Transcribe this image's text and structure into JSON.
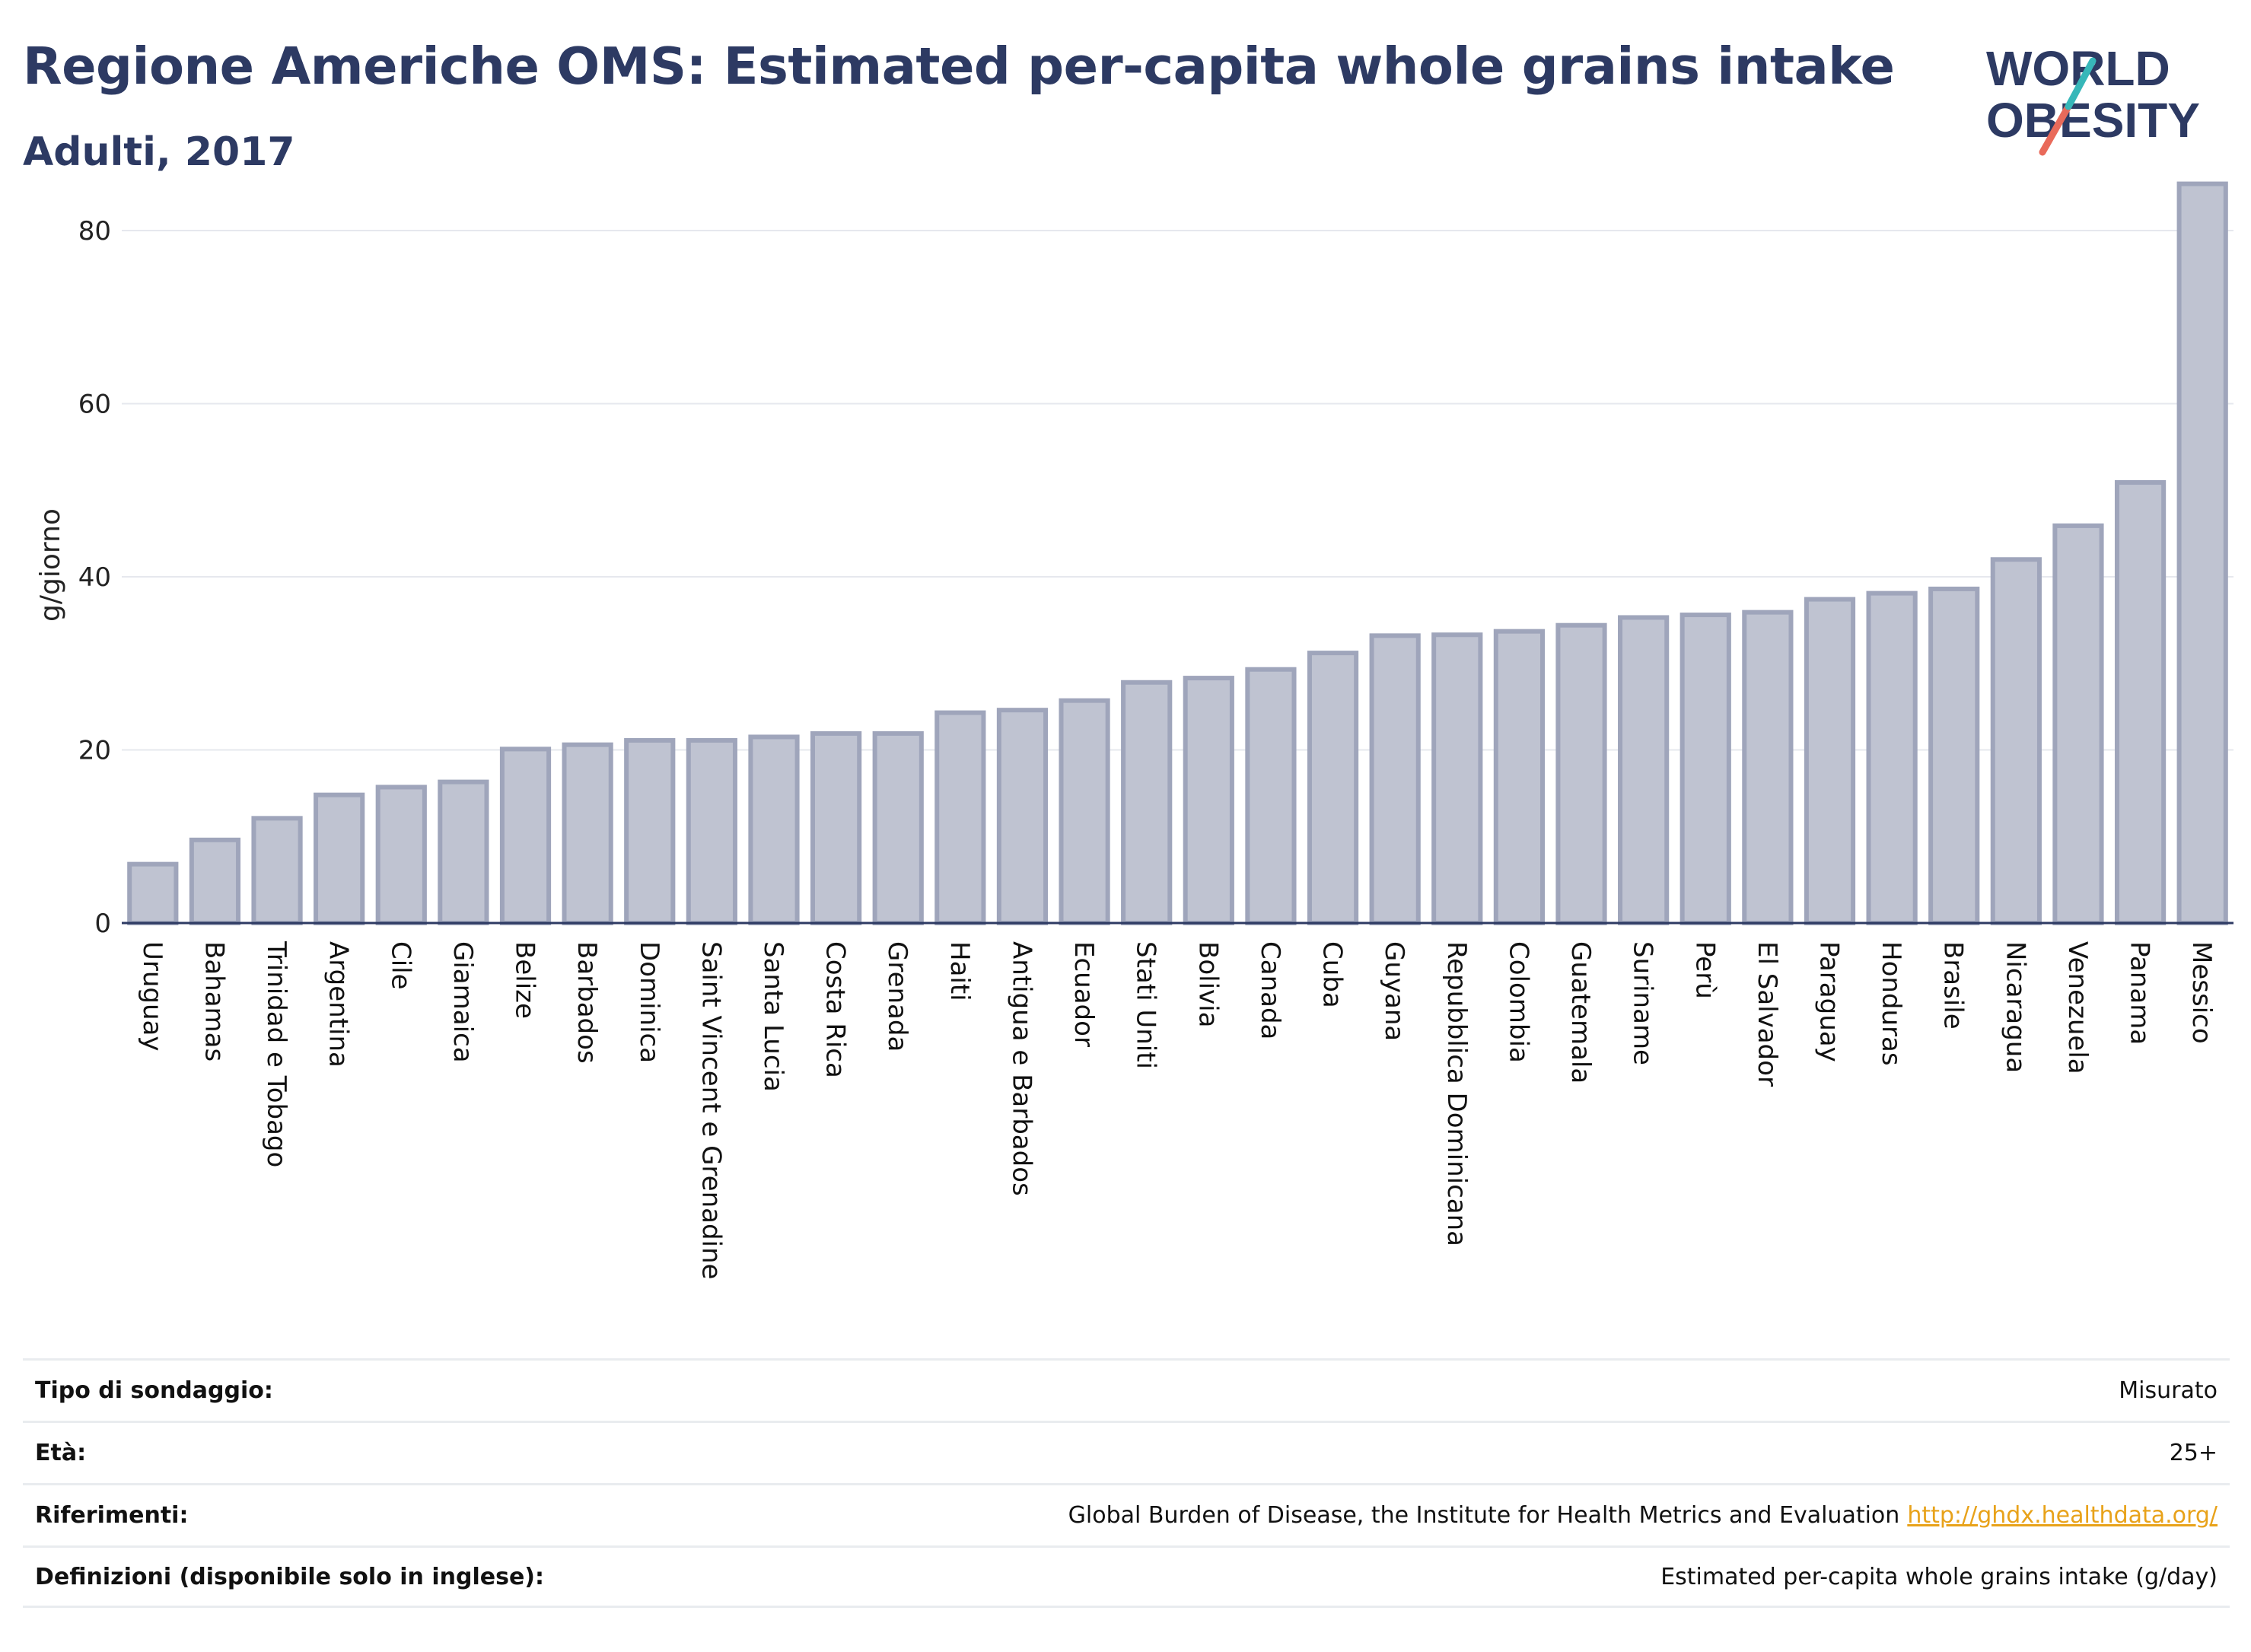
{
  "header": {
    "title": "Regione Americhe OMS: Estimated per-capita whole grains intake",
    "subtitle": "Adulti, 2017"
  },
  "logo": {
    "line1": "WORLD",
    "line2": "OBESITY"
  },
  "colors": {
    "bar_fill": "#bfc3d1",
    "bar_stroke": "#9fa5bb",
    "axis": "#2d3a63",
    "grid": "#e6e8ee",
    "text": "#2d3a63",
    "link": "#e8a21a"
  },
  "chart_data": {
    "type": "bar",
    "ylabel": "g/giorno",
    "ylim": [
      0,
      88
    ],
    "yticks": [
      0,
      20,
      40,
      60,
      80
    ],
    "grid": true,
    "categories": [
      "Uruguay",
      "Bahamas",
      "Trinidad e Tobago",
      "Argentina",
      "Cile",
      "Giamaica",
      "Belize",
      "Barbados",
      "Dominica",
      "Saint Vincent e Grenadine",
      "Santa Lucia",
      "Costa Rica",
      "Grenada",
      "Haiti",
      "Antigua e Barbados",
      "Ecuador",
      "Stati Uniti",
      "Bolivia",
      "Canada",
      "Cuba",
      "Guyana",
      "Repubblica Dominicana",
      "Colombia",
      "Guatemala",
      "Suriname",
      "Perù",
      "El Salvador",
      "Paraguay",
      "Honduras",
      "Brasile",
      "Nicaragua",
      "Venezuela",
      "Panama",
      "Messico"
    ],
    "values": [
      6.8,
      9.6,
      12.1,
      14.8,
      15.7,
      16.3,
      20.1,
      20.6,
      21.1,
      21.1,
      21.5,
      21.9,
      21.9,
      24.3,
      24.6,
      25.7,
      27.8,
      28.3,
      29.3,
      31.2,
      33.2,
      33.3,
      33.7,
      34.4,
      35.3,
      35.6,
      35.9,
      37.4,
      38.1,
      38.6,
      42.0,
      45.9,
      50.9,
      85.4
    ]
  },
  "details": [
    {
      "label": "Tipo di sondaggio:",
      "value": "Misurato",
      "link": ""
    },
    {
      "label": "Età:",
      "value": "25+",
      "link": ""
    },
    {
      "label": "Riferimenti:",
      "value": "Global Burden of Disease, the Institute for Health Metrics and Evaluation",
      "link": "http://ghdx.healthdata.org/"
    },
    {
      "label": "Definizioni (disponibile solo in inglese):",
      "value": "Estimated per-capita whole grains intake (g/day)",
      "link": ""
    }
  ]
}
